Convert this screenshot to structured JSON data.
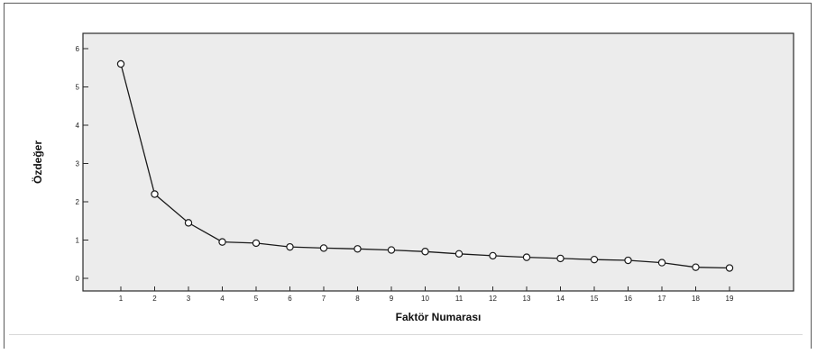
{
  "colors": {
    "plot_background": "#ececec",
    "plot_border": "#2a2a2a",
    "line": "#1a1a1a",
    "marker_fill": "#ffffff"
  },
  "chart_data": {
    "type": "line",
    "title": "",
    "xlabel": "Faktör Numarası",
    "ylabel": "Özdeğer",
    "x": [
      1,
      2,
      3,
      4,
      5,
      6,
      7,
      8,
      9,
      10,
      11,
      12,
      13,
      14,
      15,
      16,
      17,
      18,
      19
    ],
    "x_tick_labels": [
      "1",
      "2",
      "3",
      "4",
      "5",
      "6",
      "7",
      "8",
      "9",
      "10",
      "11",
      "12",
      "13",
      "14",
      "15",
      "16",
      "17",
      "18",
      "19"
    ],
    "series": [
      {
        "values": [
          5.6,
          2.2,
          1.45,
          0.95,
          0.92,
          0.82,
          0.79,
          0.77,
          0.74,
          0.7,
          0.64,
          0.59,
          0.55,
          0.52,
          0.49,
          0.47,
          0.41,
          0.29,
          0.27
        ],
        "marker": "circle"
      }
    ],
    "y_ticks": [
      0,
      1,
      2,
      3,
      4,
      5,
      6
    ],
    "y_tick_labels": [
      "0",
      "1",
      "2",
      "3",
      "4",
      "5",
      "6"
    ],
    "ylim": [
      0,
      6
    ],
    "xlim": [
      0,
      20
    ],
    "grid": false,
    "legend": "none"
  }
}
